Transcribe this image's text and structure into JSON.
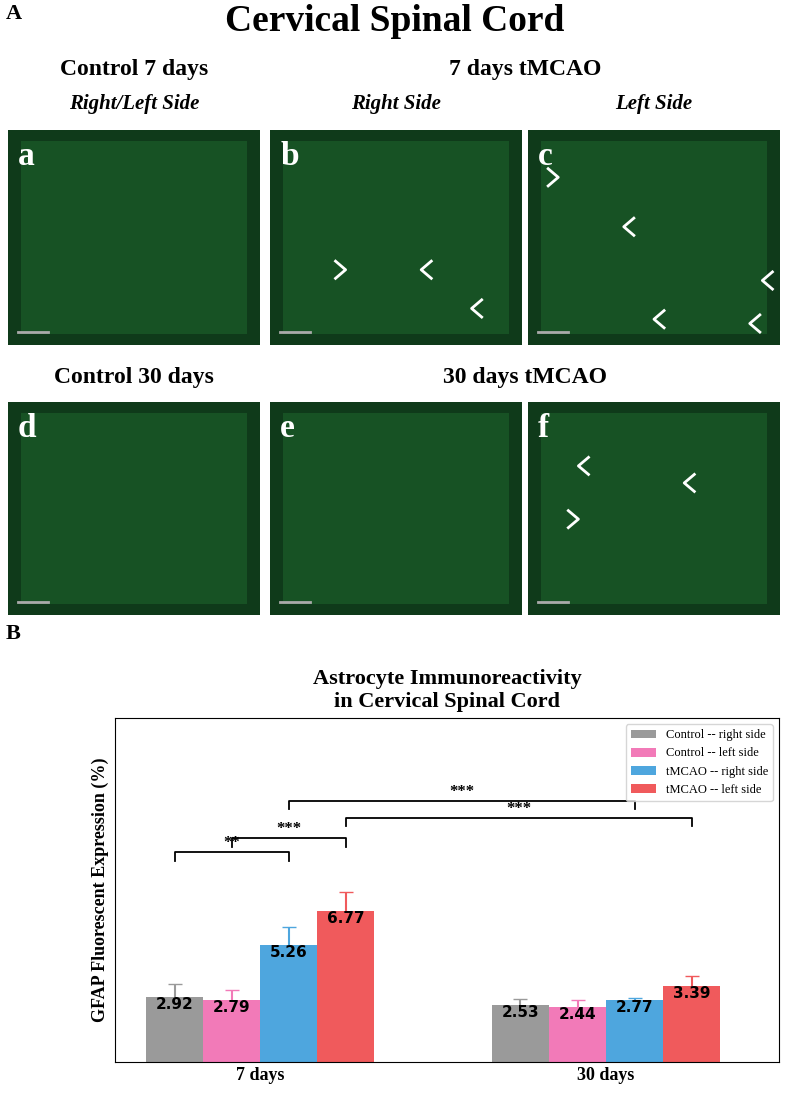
{
  "panel_a": {
    "label": "A",
    "title": "Cervical Spinal Cord",
    "row1": {
      "headers": [
        "Control 7 days",
        "7 days tMCAO"
      ],
      "subheaders": [
        "Right/Left Side",
        "Right Side",
        "Left Side"
      ],
      "panels": [
        "a",
        "b",
        "c"
      ]
    },
    "row2": {
      "headers": [
        "Control 30 days",
        "30 days tMCAO"
      ],
      "panels": [
        "d",
        "e",
        "f"
      ]
    }
  },
  "panel_b_label": "B",
  "chart_data": {
    "type": "bar",
    "title": "Astrocyte Immunoreactivity\nin Cervical Spinal Cord",
    "y_label": "GFAP Fluorescent Expression (%)",
    "categories": [
      "7 days",
      "30 days"
    ],
    "series": [
      {
        "name": "Control -- right side",
        "color": "#9a9a9a",
        "values": [
          2.92,
          2.53
        ],
        "errors": [
          0.58,
          0.29
        ]
      },
      {
        "name": "Control -- left side",
        "color": "#f27ab8",
        "values": [
          2.79,
          2.44
        ],
        "errors": [
          0.45,
          0.35
        ]
      },
      {
        "name": "tMCAO -- right side",
        "color": "#4ea6de",
        "values": [
          5.26,
          2.77
        ],
        "errors": [
          0.78,
          0.1
        ]
      },
      {
        "name": "tMCAO -- left side",
        "color": "#f05a5c",
        "values": [
          6.77,
          3.39
        ],
        "errors": [
          0.82,
          0.45
        ]
      }
    ],
    "ylim": [
      0,
      15.4
    ],
    "yticks": [],
    "tick_labels": "x",
    "data_labels": true,
    "legend": "upper right",
    "significance": [
      {
        "from": {
          "category": "7 days",
          "series": "Control -- right side"
        },
        "to": {
          "category": "7 days",
          "series": "tMCAO -- right side"
        },
        "label": "**"
      },
      {
        "from": {
          "category": "7 days",
          "series": "Control -- left side"
        },
        "to": {
          "category": "7 days",
          "series": "tMCAO -- left side"
        },
        "label": "***"
      },
      {
        "from": {
          "category": "7 days",
          "series": "tMCAO -- right side"
        },
        "to": {
          "category": "30 days",
          "series": "tMCAO -- right side"
        },
        "label": "***"
      },
      {
        "from": {
          "category": "7 days",
          "series": "tMCAO -- left side"
        },
        "to": {
          "category": "30 days",
          "series": "tMCAO -- left side"
        },
        "label": "***"
      }
    ]
  }
}
